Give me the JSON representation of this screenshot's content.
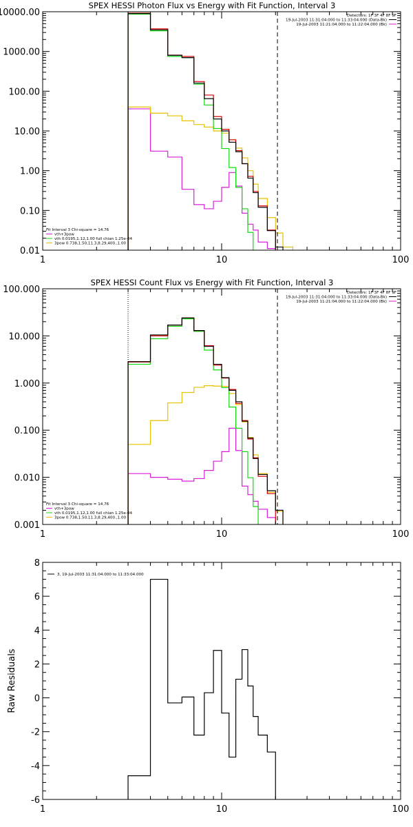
{
  "colors": {
    "total": "#d40000",
    "data": "#000000",
    "bk": "#d81ed8",
    "vth": "#12d812",
    "bpow": "#e8c000"
  },
  "chart_data": [
    {
      "type": "line",
      "title": "SPEX HESSI Photon Flux vs Energy with Fit Function, Interval 3",
      "xlabel": "",
      "ylabel": "",
      "xscale": "log",
      "yscale": "log",
      "xlim": [
        1,
        100
      ],
      "ylim": [
        0.01,
        10000
      ],
      "x_ticks": [
        "1",
        "10",
        "100"
      ],
      "y_ticks": [
        "0.01",
        "0.10",
        "1.00",
        "10.00",
        "100.00",
        "1000.00",
        "10000.00"
      ],
      "vlines": [
        {
          "x": 3,
          "style": "dotted"
        },
        {
          "x": 20.5,
          "style": "dashed"
        }
      ],
      "legend_top": [
        "Detectors: 1F 3F 4F 8F 9F",
        "19-Jul-2003 11:31:04.000 to 11:33:04.000 (Data-Bk)",
        "19-Jul-2003 11:21:04.000 to 11:22:04.000 (Bk)"
      ],
      "legend_bottom": [
        "Fit Interval 3   Chi-square = 14.76",
        "vth+3pow",
        "vth 0.0195,1.12,1.00  full chian 1.25e-04",
        "3pow 0.738,1.50,11.3,8.29,400.,1.00"
      ],
      "edges": [
        3,
        4,
        5,
        6,
        7,
        8,
        9,
        10,
        11,
        12,
        13,
        14,
        15,
        16,
        18,
        20,
        22,
        25
      ],
      "series": [
        {
          "key": "data",
          "values": [
            9000,
            3500,
            800,
            700,
            160,
            65,
            20,
            10,
            5.2,
            3.0,
            1.5,
            0.65,
            0.28,
            0.12,
            0.031,
            0.012,
            null
          ]
        },
        {
          "key": "total",
          "values": [
            9200,
            3700,
            810,
            750,
            175,
            80,
            23,
            11,
            6.0,
            3.2,
            1.5,
            0.72,
            0.3,
            0.13,
            0.032,
            null,
            null
          ]
        },
        {
          "key": "vth",
          "values": [
            8700,
            3300,
            750,
            700,
            150,
            45,
            11.5,
            3.6,
            1.2,
            0.38,
            0.11,
            0.028,
            0.008,
            null,
            null,
            null,
            null
          ]
        },
        {
          "key": "bpow",
          "values": [
            40,
            28,
            24,
            18,
            14.5,
            12.5,
            10,
            8.8,
            6.0,
            3.7,
            2.1,
            1.0,
            0.46,
            0.2,
            0.066,
            0.027,
            0.012
          ]
        },
        {
          "key": "bk",
          "values": [
            36,
            3.1,
            2.2,
            0.34,
            0.14,
            0.11,
            0.17,
            0.38,
            0.9,
            0.41,
            0.085,
            0.045,
            0.032,
            0.016,
            0.011,
            null,
            null
          ]
        }
      ]
    },
    {
      "type": "line",
      "title": "SPEX HESSI Count Flux vs Energy with Fit Function, Interval 3",
      "xlabel": "",
      "ylabel": "",
      "xscale": "log",
      "yscale": "log",
      "xlim": [
        1,
        100
      ],
      "ylim": [
        0.001,
        100
      ],
      "x_ticks": [
        "1",
        "10",
        "100"
      ],
      "y_ticks": [
        "0.001",
        "0.010",
        "0.100",
        "1.000",
        "10.000",
        "100.000"
      ],
      "vlines": [
        {
          "x": 3,
          "style": "dotted"
        },
        {
          "x": 20.5,
          "style": "dashed"
        }
      ],
      "legend_top": [
        "Detectors: 1F 3F 4F 8F 9F",
        "19-Jul-2003 11:31:04.000 to 11:33:04.000 (Data-Bk)",
        "19-Jul-2003 11:21:04.000 to 11:22:04.000 (Bk)"
      ],
      "legend_bottom": [
        "Fit Interval 3   Chi-square = 14.76",
        "vth+3pow",
        "vth 0.0195,1.12,1.00  full chian 1.25e-04",
        "3pow 0.738,1.50,11.3,8.29,400.,1.00"
      ],
      "edges": [
        3,
        4,
        5,
        6,
        7,
        8,
        9,
        10,
        11,
        12,
        13,
        14,
        15,
        16,
        18,
        20,
        22,
        25
      ],
      "series": [
        {
          "key": "data",
          "values": [
            2.85,
            10.5,
            17.0,
            24.0,
            13.0,
            6.0,
            2.5,
            1.3,
            0.7,
            0.4,
            0.155,
            0.068,
            0.025,
            0.0115,
            0.0052,
            0.002,
            null
          ]
        },
        {
          "key": "total",
          "values": [
            2.8,
            10.0,
            17.0,
            24.0,
            13.0,
            6.2,
            2.4,
            1.28,
            0.73,
            0.37,
            0.16,
            0.065,
            0.026,
            0.0105,
            0.0045,
            null,
            null
          ]
        },
        {
          "key": "vth",
          "values": [
            2.5,
            8.7,
            16.0,
            23.0,
            12.5,
            5.0,
            1.9,
            0.8,
            0.31,
            0.11,
            0.035,
            0.0098,
            0.0024,
            0.0007,
            null,
            null,
            null
          ]
        },
        {
          "key": "bpow",
          "values": [
            0.05,
            0.16,
            0.38,
            0.63,
            0.81,
            0.88,
            0.86,
            0.85,
            0.6,
            0.35,
            0.15,
            0.07,
            0.03,
            0.012,
            0.0048,
            0.0019,
            0.0008
          ]
        },
        {
          "key": "bk",
          "values": [
            0.012,
            0.01,
            0.0091,
            0.0083,
            0.0094,
            0.014,
            0.022,
            0.035,
            0.11,
            0.037,
            0.0065,
            0.0043,
            0.0031,
            0.0021,
            0.0014,
            null,
            null
          ]
        }
      ]
    },
    {
      "type": "line",
      "title": "",
      "xlabel": "",
      "ylabel": "Raw Residuals",
      "xscale": "log",
      "yscale": "linear",
      "xlim": [
        1,
        100
      ],
      "ylim": [
        -6,
        8
      ],
      "x_ticks": [
        "1",
        "10",
        "100"
      ],
      "y_ticks": [
        "-6",
        "-4",
        "-2",
        "0",
        "2",
        "4",
        "6",
        "8"
      ],
      "legend_top_left": [
        "3, 19-Jul-2003 11:31:04.000 to 11:33:04.000"
      ],
      "edges": [
        3,
        4,
        5,
        6,
        7,
        8,
        9,
        10,
        11,
        12,
        13,
        14,
        15,
        16,
        18,
        20
      ],
      "series": [
        {
          "key": "data",
          "values": [
            -4.6,
            7.0,
            -0.3,
            0.05,
            -2.2,
            0.3,
            2.8,
            -0.9,
            -3.5,
            1.1,
            2.85,
            0.7,
            -1.1,
            -2.2,
            -3.2
          ]
        }
      ]
    }
  ]
}
